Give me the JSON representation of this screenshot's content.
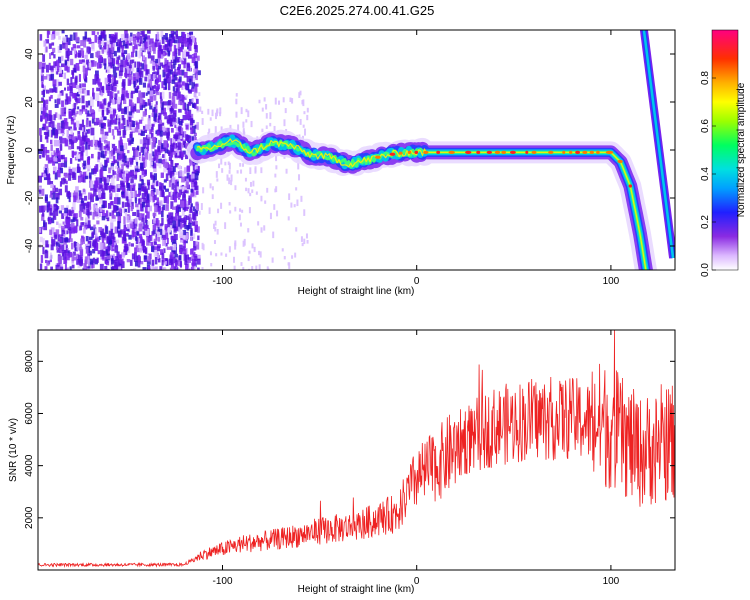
{
  "title": "C2E6.2025.274.00.41.G25",
  "colors": {
    "snr_line": "#ee2222",
    "scatter_noise": "#7a22ee",
    "axis": "#000000"
  },
  "chart_data": [
    {
      "type": "heatmap",
      "title": "C2E6.2025.274.00.41.G25",
      "xlabel": "Height of straight line (km)",
      "ylabel": "Frequency (Hz)",
      "xlim": [
        -195,
        133
      ],
      "ylim": [
        -50,
        50
      ],
      "xticks": [
        -100,
        0,
        100
      ],
      "xtick_labels": [
        "-100",
        "0",
        "100"
      ],
      "yticks": [
        -40,
        -20,
        0,
        20,
        40
      ],
      "ytick_labels": [
        "-40",
        "-20",
        "0",
        "20",
        "40"
      ],
      "noise_region_x": [
        -195,
        -113
      ],
      "signal_track": {
        "x": [
          -113,
          -105,
          -95,
          -85,
          -75,
          -65,
          -55,
          -45,
          -35,
          -25,
          -15,
          -5,
          5,
          20,
          40,
          60,
          80,
          100,
          105,
          110,
          115,
          118
        ],
        "freq": [
          0,
          1,
          4,
          -1,
          3,
          2,
          -2,
          -3,
          -6,
          -4,
          -2,
          -1,
          -1,
          -1,
          -1,
          -1,
          -1,
          -1,
          -5,
          -15,
          -35,
          -50
        ]
      },
      "alias_track": {
        "x": [
          117,
          132
        ],
        "freq": [
          50,
          -45
        ]
      },
      "colorbar": {
        "label": "Normalized spectral amplitude",
        "range": [
          0.0,
          1.0
        ],
        "ticks": [
          0.0,
          0.2,
          0.4,
          0.6,
          0.8
        ],
        "tick_labels": [
          "0.0",
          "0.2",
          "0.4",
          "0.6",
          "0.8"
        ]
      }
    },
    {
      "type": "line",
      "xlabel": "Height of straight line (km)",
      "ylabel": "SNR (10 * v/v)",
      "xlim": [
        -195,
        133
      ],
      "ylim": [
        0,
        9200
      ],
      "xticks": [
        -100,
        0,
        100
      ],
      "xtick_labels": [
        "-100",
        "0",
        "100"
      ],
      "yticks": [
        2000,
        4000,
        6000,
        8000
      ],
      "ytick_labels": [
        "2000",
        "4000",
        "6000",
        "8000"
      ],
      "trend": {
        "x": [
          -195,
          -120,
          -110,
          -90,
          -70,
          -50,
          -30,
          -10,
          0,
          10,
          25,
          40,
          60,
          80,
          100,
          115,
          133
        ],
        "y": [
          200,
          200,
          600,
          1000,
          1200,
          1500,
          1700,
          2200,
          3500,
          4000,
          5000,
          5500,
          5800,
          5800,
          5500,
          4500,
          5000
        ]
      }
    }
  ]
}
